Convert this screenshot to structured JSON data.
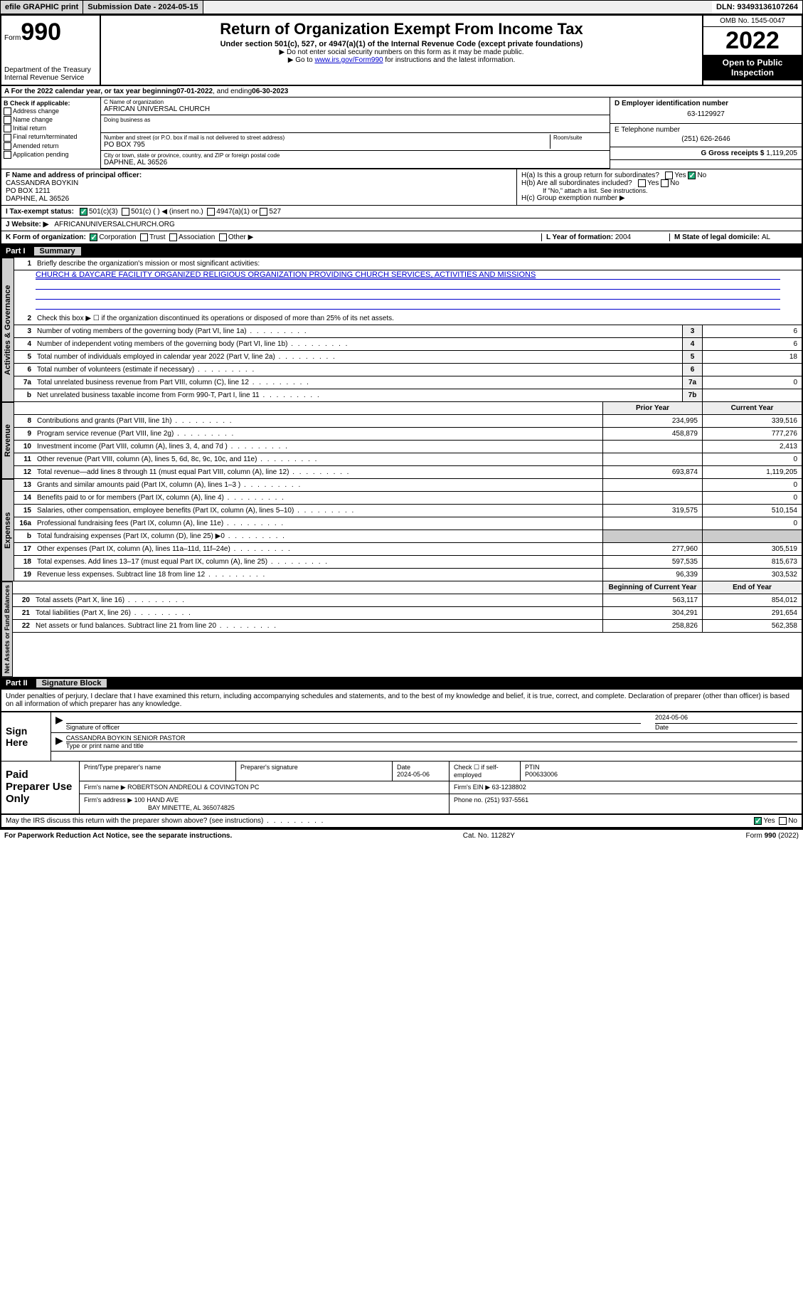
{
  "top": {
    "efile": "efile GRAPHIC print",
    "subdate_label": "Submission Date - ",
    "subdate": "2024-05-15",
    "dln_label": "DLN: ",
    "dln": "93493136107264"
  },
  "header": {
    "form_word": "Form",
    "form_no": "990",
    "dept": "Department of the Treasury",
    "irs": "Internal Revenue Service",
    "title": "Return of Organization Exempt From Income Tax",
    "sub": "Under section 501(c), 527, or 4947(a)(1) of the Internal Revenue Code (except private foundations)",
    "note1": "▶ Do not enter social security numbers on this form as it may be made public.",
    "note2_pre": "▶ Go to ",
    "note2_link": "www.irs.gov/Form990",
    "note2_post": " for instructions and the latest information.",
    "omb": "OMB No. 1545-0047",
    "year": "2022",
    "open": "Open to Public Inspection"
  },
  "rowA": {
    "text_pre": "A For the 2022 calendar year, or tax year beginning ",
    "begin": "07-01-2022",
    "mid": " , and ending ",
    "end": "06-30-2023"
  },
  "B": {
    "label": "B Check if applicable:",
    "opts": [
      "Address change",
      "Name change",
      "Initial return",
      "Final return/terminated",
      "Amended return",
      "Application pending"
    ]
  },
  "C": {
    "name_lab": "C Name of organization",
    "name": "AFRICAN UNIVERSAL CHURCH",
    "dba_lab": "Doing business as",
    "dba": "",
    "addr_lab": "Number and street (or P.O. box if mail is not delivered to street address)",
    "room_lab": "Room/suite",
    "addr": "PO BOX 795",
    "city_lab": "City or town, state or province, country, and ZIP or foreign postal code",
    "city": "DAPHNE, AL  36526"
  },
  "D": {
    "lab": "D Employer identification number",
    "val": "63-1129927"
  },
  "E": {
    "lab": "E Telephone number",
    "val": "(251) 626-2646"
  },
  "G": {
    "lab": "G Gross receipts $ ",
    "val": "1,119,205"
  },
  "F": {
    "lab": "F  Name and address of principal officer:",
    "name": "CASSANDRA BOYKIN",
    "addr1": "PO BOX 1211",
    "addr2": "DAPHNE, AL  36526"
  },
  "H": {
    "a": "H(a)  Is this a group return for subordinates?",
    "a_yes": "Yes",
    "a_no": "No",
    "b": "H(b)  Are all subordinates included?",
    "b_yes": "Yes",
    "b_no": "No",
    "b_note": "If \"No,\" attach a list. See instructions.",
    "c": "H(c)  Group exemption number ▶"
  },
  "I": {
    "lab": "I    Tax-exempt status:",
    "o1": "501(c)(3)",
    "o2": "501(c) (  ) ◀ (insert no.)",
    "o3": "4947(a)(1) or",
    "o4": "527"
  },
  "J": {
    "lab": "J    Website: ▶",
    "val": "AFRICANUNIVERSALCHURCH.ORG"
  },
  "K": {
    "lab": "K Form of organization:",
    "o1": "Corporation",
    "o2": "Trust",
    "o3": "Association",
    "o4": "Other ▶"
  },
  "L": {
    "lab": "L Year of formation: ",
    "val": "2004"
  },
  "M": {
    "lab": "M State of legal domicile: ",
    "val": "AL"
  },
  "part1": {
    "num": "Part I",
    "title": "Summary",
    "q1": "Briefly describe the organization's mission or most significant activities:",
    "q1val": "CHURCH & DAYCARE FACILITY ORGANIZED RELIGIOUS ORGANIZATION PROVIDING CHURCH SERVICES, ACTIVITIES AND MISSIONS",
    "q2": "Check this box ▶ ☐  if the organization discontinued its operations or disposed of more than 25% of its net assets.",
    "rows_gov": [
      {
        "n": "3",
        "t": "Number of voting members of the governing body (Part VI, line 1a)",
        "bx": "3",
        "v": "6"
      },
      {
        "n": "4",
        "t": "Number of independent voting members of the governing body (Part VI, line 1b)",
        "bx": "4",
        "v": "6"
      },
      {
        "n": "5",
        "t": "Total number of individuals employed in calendar year 2022 (Part V, line 2a)",
        "bx": "5",
        "v": "18"
      },
      {
        "n": "6",
        "t": "Total number of volunteers (estimate if necessary)",
        "bx": "6",
        "v": ""
      },
      {
        "n": "7a",
        "t": "Total unrelated business revenue from Part VIII, column (C), line 12",
        "bx": "7a",
        "v": "0"
      },
      {
        "n": "b",
        "t": "Net unrelated business taxable income from Form 990-T, Part I, line 11",
        "bx": "7b",
        "v": ""
      }
    ],
    "col_py": "Prior Year",
    "col_cy": "Current Year",
    "rows_rev": [
      {
        "n": "8",
        "t": "Contributions and grants (Part VIII, line 1h)",
        "py": "234,995",
        "cy": "339,516"
      },
      {
        "n": "9",
        "t": "Program service revenue (Part VIII, line 2g)",
        "py": "458,879",
        "cy": "777,276"
      },
      {
        "n": "10",
        "t": "Investment income (Part VIII, column (A), lines 3, 4, and 7d )",
        "py": "",
        "cy": "2,413"
      },
      {
        "n": "11",
        "t": "Other revenue (Part VIII, column (A), lines 5, 6d, 8c, 9c, 10c, and 11e)",
        "py": "",
        "cy": "0"
      },
      {
        "n": "12",
        "t": "Total revenue—add lines 8 through 11 (must equal Part VIII, column (A), line 12)",
        "py": "693,874",
        "cy": "1,119,205"
      }
    ],
    "rows_exp": [
      {
        "n": "13",
        "t": "Grants and similar amounts paid (Part IX, column (A), lines 1–3 )",
        "py": "",
        "cy": "0"
      },
      {
        "n": "14",
        "t": "Benefits paid to or for members (Part IX, column (A), line 4)",
        "py": "",
        "cy": "0"
      },
      {
        "n": "15",
        "t": "Salaries, other compensation, employee benefits (Part IX, column (A), lines 5–10)",
        "py": "319,575",
        "cy": "510,154"
      },
      {
        "n": "16a",
        "t": "Professional fundraising fees (Part IX, column (A), line 11e)",
        "py": "",
        "cy": "0"
      },
      {
        "n": "b",
        "t": "Total fundraising expenses (Part IX, column (D), line 25) ▶0",
        "py": "—",
        "cy": "—"
      },
      {
        "n": "17",
        "t": "Other expenses (Part IX, column (A), lines 11a–11d, 11f–24e)",
        "py": "277,960",
        "cy": "305,519"
      },
      {
        "n": "18",
        "t": "Total expenses. Add lines 13–17 (must equal Part IX, column (A), line 25)",
        "py": "597,535",
        "cy": "815,673"
      },
      {
        "n": "19",
        "t": "Revenue less expenses. Subtract line 18 from line 12",
        "py": "96,339",
        "cy": "303,532"
      }
    ],
    "col_bcy": "Beginning of Current Year",
    "col_eoy": "End of Year",
    "rows_net": [
      {
        "n": "20",
        "t": "Total assets (Part X, line 16)",
        "py": "563,117",
        "cy": "854,012"
      },
      {
        "n": "21",
        "t": "Total liabilities (Part X, line 26)",
        "py": "304,291",
        "cy": "291,654"
      },
      {
        "n": "22",
        "t": "Net assets or fund balances. Subtract line 21 from line 20",
        "py": "258,826",
        "cy": "562,358"
      }
    ]
  },
  "vtabs": {
    "gov": "Activities & Governance",
    "rev": "Revenue",
    "exp": "Expenses",
    "net": "Net Assets or Fund Balances"
  },
  "part2": {
    "num": "Part II",
    "title": "Signature Block",
    "decl": "Under penalties of perjury, I declare that I have examined this return, including accompanying schedules and statements, and to the best of my knowledge and belief, it is true, correct, and complete. Declaration of preparer (other than officer) is based on all information of which preparer has any knowledge."
  },
  "sign": {
    "here": "Sign Here",
    "sig_lab": "Signature of officer",
    "date_lab": "Date",
    "date": "2024-05-06",
    "name": "CASSANDRA BOYKIN  SENIOR PASTOR",
    "name_lab": "Type or print name and title"
  },
  "prep": {
    "here": "Paid Preparer Use Only",
    "c1": "Print/Type preparer's name",
    "c2": "Preparer's signature",
    "c3": "Date",
    "c3v": "2024-05-06",
    "c4": "Check ☐ if self-employed",
    "c5": "PTIN",
    "c5v": "P00633006",
    "firm_lab": "Firm's name   ▶",
    "firm": "ROBERTSON ANDREOLI & COVINGTON PC",
    "ein_lab": "Firm's EIN ▶",
    "ein": "63-1238802",
    "addr_lab": "Firm's address ▶",
    "addr1": "100 HAND AVE",
    "addr2": "BAY MINETTE, AL  365074825",
    "ph_lab": "Phone no. ",
    "ph": "(251) 937-5561"
  },
  "discuss": {
    "t": "May the IRS discuss this return with the preparer shown above? (see instructions)",
    "yes": "Yes",
    "no": "No"
  },
  "foot": {
    "l": "For Paperwork Reduction Act Notice, see the separate instructions.",
    "c": "Cat. No. 11282Y",
    "r": "Form 990 (2022)"
  }
}
